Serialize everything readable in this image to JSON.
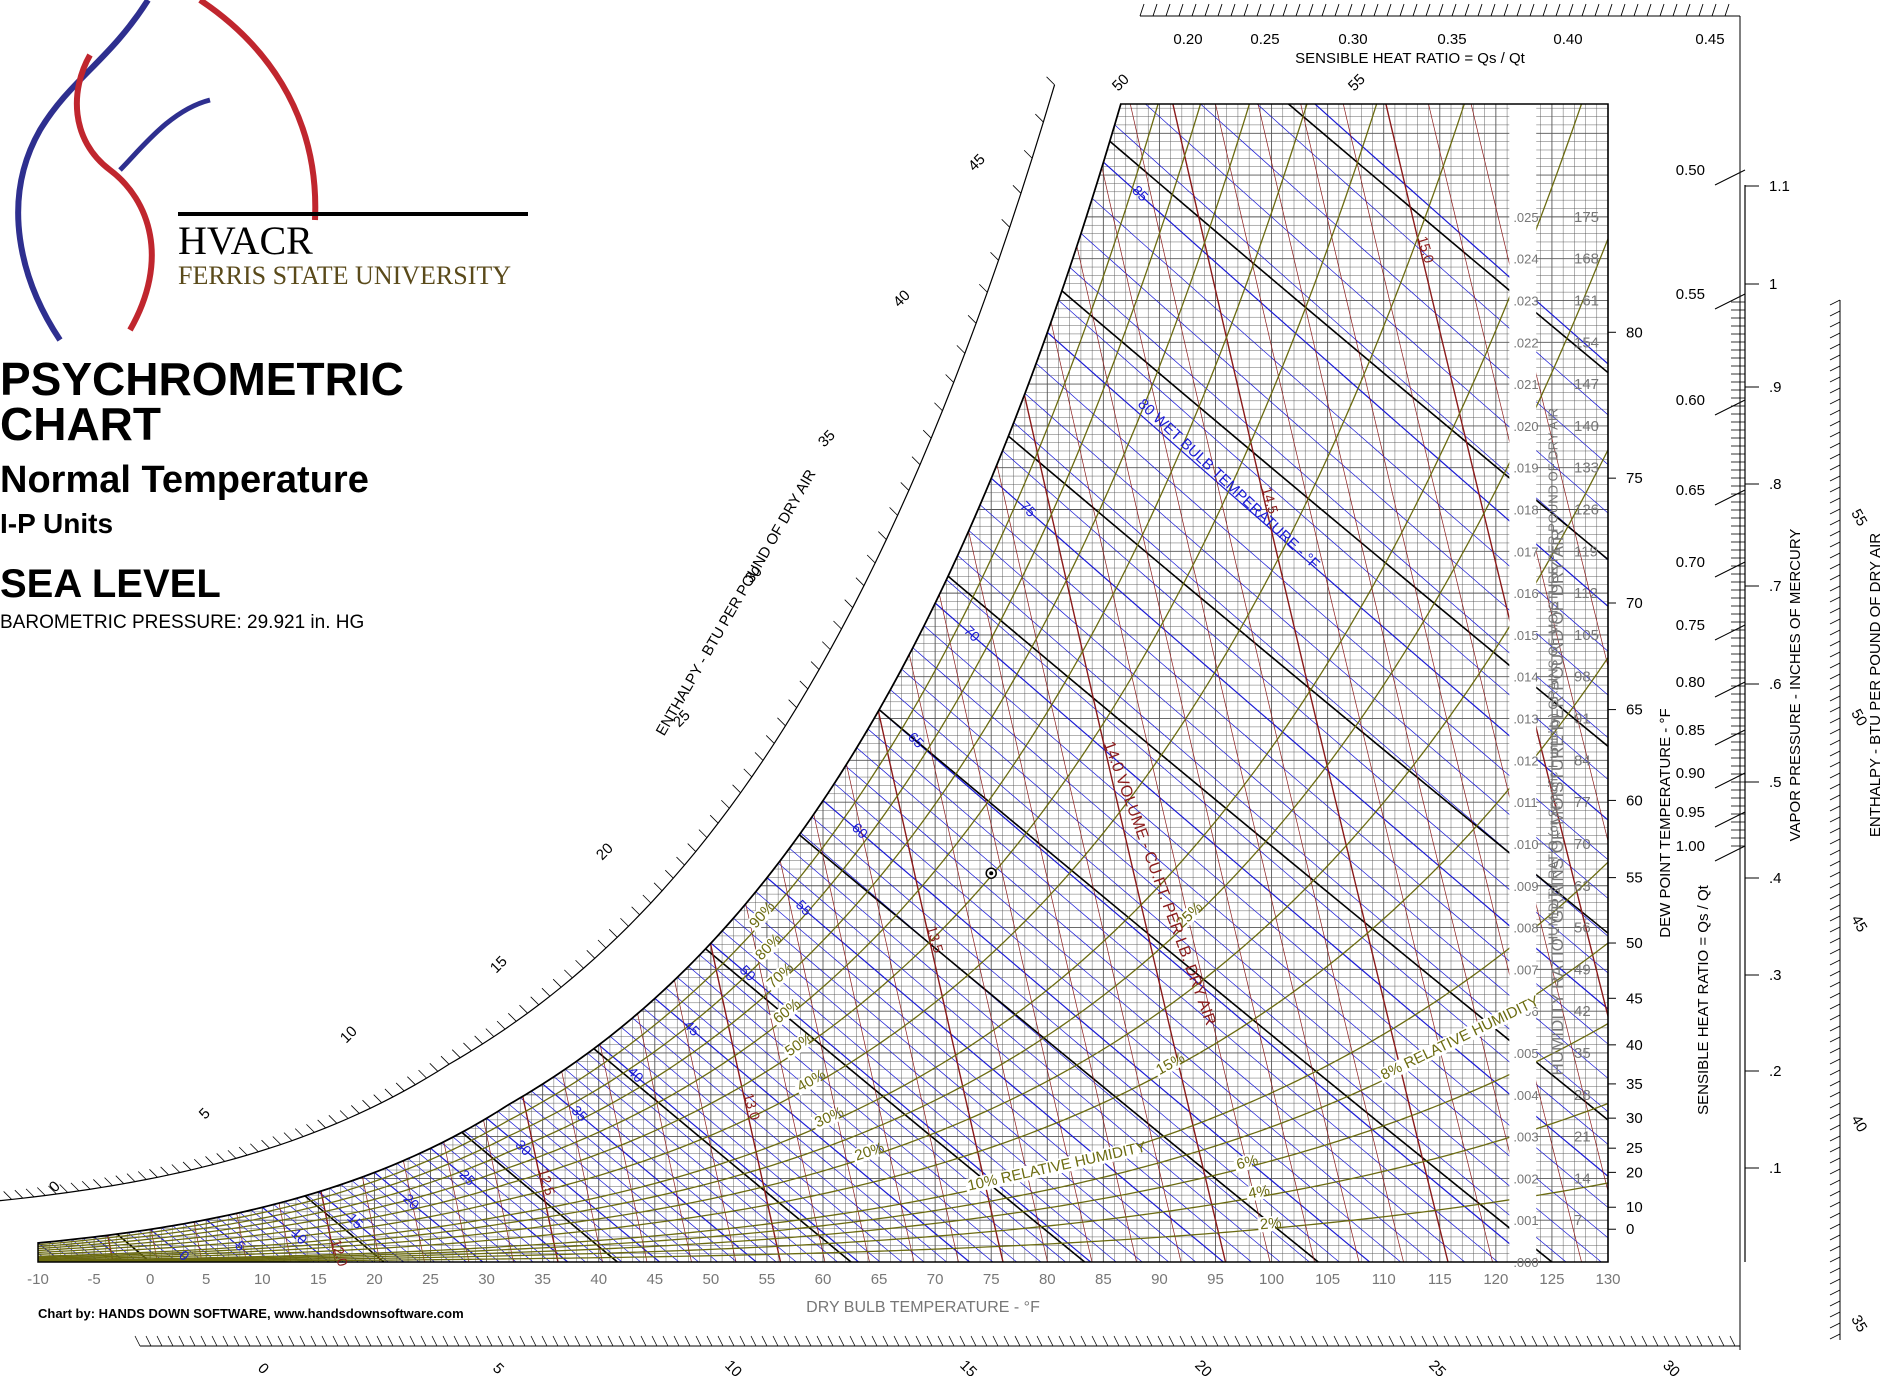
{
  "branding": {
    "logo_name": "HVACR",
    "institution": "FERRIS STATE UNIVERSITY",
    "logo_colors": {
      "blue": "#2e2f8f",
      "red": "#c0262e"
    }
  },
  "heading": {
    "title_line1": "PSYCHROMETRIC",
    "title_line2": "CHART",
    "subtitle": "Normal Temperature",
    "units": "I-P Units",
    "altitude": "SEA LEVEL",
    "pressure": "BAROMETRIC PRESSURE: 29.921 in. HG"
  },
  "credit": "Chart by: HANDS DOWN SOFTWARE, www.handsdownsoftware.com",
  "colors": {
    "wet_bulb": "#1a1ad6",
    "volume": "#8b1a1a",
    "relative_humidity": "#6b6b10",
    "grid": "#555555",
    "enthalpy": "#000000",
    "axis_text": "#777777"
  },
  "chart_data": {
    "type": "line",
    "title": "PSYCHROMETRIC CHART",
    "xlabel": "DRY BULB TEMPERATURE - °F",
    "ylabel": "HUMIDITY RATIO (or Specific Humidity) GRAINS OF MOISTURE PER POUND OF DRY AIR",
    "xlim": [
      -10,
      130
    ],
    "ylim": [
      0,
      0.028
    ],
    "x_ticks": [
      -10,
      -5,
      0,
      5,
      10,
      15,
      20,
      25,
      30,
      35,
      40,
      45,
      50,
      55,
      60,
      65,
      70,
      75,
      80,
      85,
      90,
      95,
      100,
      105,
      110,
      115,
      120,
      125,
      130
    ],
    "humidity_ratio_ticks": [
      ".025",
      ".024",
      ".023",
      ".022",
      ".021",
      ".020",
      ".019",
      ".018",
      ".017",
      ".016",
      ".015",
      ".014",
      ".013",
      ".012",
      ".011",
      ".010",
      ".009",
      ".008",
      ".007",
      ".006",
      ".005",
      ".004",
      ".003",
      ".002",
      ".001",
      ".000"
    ],
    "humidity_ratio_label": "HUMIDITY RATIO (or Specific Humidity) GRAINS OF MOISTURE PER POUND OF DRY AIR",
    "grains_ticks": [
      175,
      168,
      161,
      154,
      147,
      140,
      133,
      126,
      119,
      112,
      105,
      98,
      91,
      84,
      77,
      70,
      63,
      56,
      49,
      42,
      35,
      28,
      21,
      14,
      7
    ],
    "grains_label": "HUMIDITY RATIO - GRAINS OF MOISTURE PER POUND OF DRY AIR",
    "dew_point_ticks": [
      0,
      10,
      20,
      25,
      30,
      35,
      40,
      45,
      50,
      55,
      60,
      65,
      70,
      75,
      80
    ],
    "dew_point_label": "DEW POINT TEMPERATURE - °F",
    "relative_humidity": {
      "levels": [
        2,
        4,
        6,
        8,
        10,
        15,
        20,
        25,
        30,
        40,
        50,
        60,
        70,
        80,
        90,
        100
      ],
      "labels": [
        "2%",
        "4%",
        "6%",
        "8% RELATIVE HUMIDITY",
        "10% RELATIVE HUMIDITY",
        "15%",
        "20%",
        "25%",
        "30%",
        "40%",
        "50%",
        "60%",
        "70%",
        "80%",
        "90%"
      ]
    },
    "wet_bulb": {
      "levels": [
        -10,
        -5,
        0,
        5,
        10,
        15,
        20,
        25,
        30,
        35,
        40,
        45,
        50,
        55,
        60,
        65,
        70,
        75,
        80,
        85
      ],
      "labels": [
        "0",
        "5",
        "10",
        "15",
        "20",
        "25",
        "30",
        "35",
        "40",
        "45",
        "50",
        "55",
        "60",
        "65",
        "70",
        "75",
        "85"
      ],
      "title": "80 WET BULB TEMPERATURE - °F"
    },
    "specific_volume": {
      "levels": [
        12.0,
        12.5,
        13.0,
        13.5,
        14.0,
        14.5,
        15.0
      ],
      "labels": [
        "12.0",
        "12.5",
        "13.0",
        "13.5",
        "14.0",
        "14.5",
        "15.0"
      ],
      "title": "14.0 VOLUME - CU.FT. PER LB. DRY AIR"
    },
    "enthalpy": {
      "levels": [
        0,
        5,
        10,
        15,
        20,
        25,
        30,
        35,
        40,
        45,
        50,
        55
      ],
      "label": "ENTHALPY - BTU PER POUND OF DRY AIR",
      "bottom_ticks": [
        0,
        5,
        10,
        15,
        20,
        25,
        30
      ],
      "right_ticks": [
        35,
        40,
        45,
        50,
        55
      ]
    },
    "state_point": {
      "dry_bulb": 75,
      "humidity_ratio": 0.0093
    },
    "sensible_heat_ratio": {
      "label": "SENSIBLE HEAT RATIO = Qs / Qt",
      "top_ticks": [
        "0.20",
        "0.25",
        "0.30",
        "0.35",
        "0.40",
        "0.45"
      ],
      "side_ticks": [
        "0.50",
        "0.55",
        "0.60",
        "0.65",
        "0.70",
        "0.75",
        "0.80",
        "0.85",
        "0.90",
        "0.95",
        "1.00"
      ]
    },
    "vapor_pressure": {
      "label": "VAPOR PRESSURE - INCHES OF MERCURY",
      "ticks": [
        "1.1",
        "1",
        ".9",
        ".8",
        ".7",
        ".6",
        ".5",
        ".4",
        ".3",
        ".2",
        ".1"
      ]
    }
  }
}
